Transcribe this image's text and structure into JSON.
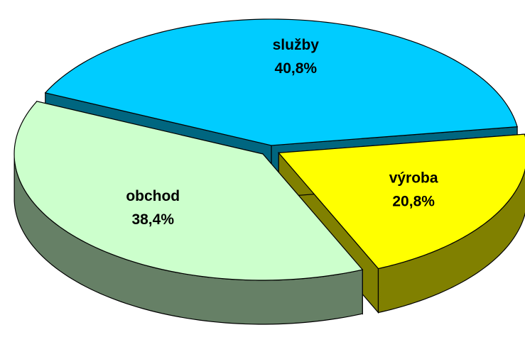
{
  "chart_data": {
    "type": "pie",
    "categories": [
      "služby",
      "obchod",
      "výroba"
    ],
    "values": [
      40.8,
      38.4,
      20.8
    ],
    "value_labels": [
      "40,8%",
      "38,4%",
      "20,8%"
    ],
    "colors": [
      "#00CCFF",
      "#CCFFCC",
      "#FFFF00"
    ]
  }
}
